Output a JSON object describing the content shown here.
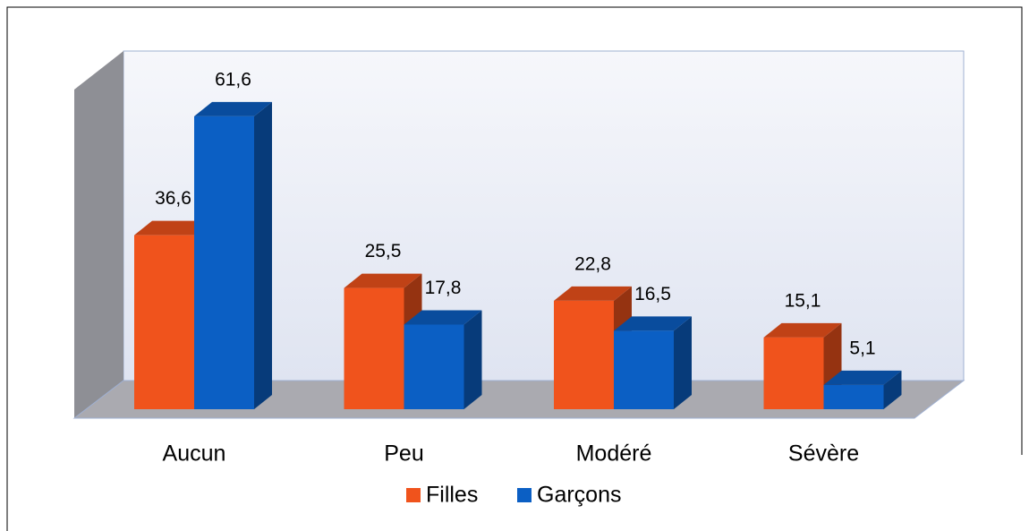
{
  "chart_data": {
    "type": "bar3d",
    "categories": [
      "Aucun",
      "Peu",
      "Modéré",
      "Sévère"
    ],
    "series": [
      {
        "name": "Filles",
        "color": "#f0531c",
        "values": [
          36.6,
          25.5,
          22.8,
          15.1
        ],
        "value_labels": [
          "36,6",
          "25,5",
          "22,8",
          "15,1"
        ]
      },
      {
        "name": "Garçons",
        "color": "#0b5fc4",
        "values": [
          61.6,
          17.8,
          16.5,
          5.1
        ],
        "value_labels": [
          "61,6",
          "17,8",
          "16,5",
          "5,1"
        ]
      }
    ],
    "legend": "bottom"
  }
}
